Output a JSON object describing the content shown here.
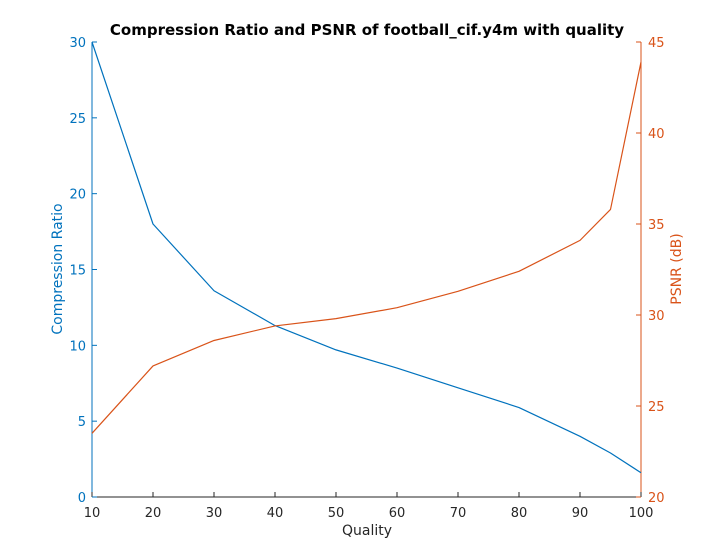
{
  "chart_data": {
    "type": "line",
    "title": "Compression Ratio and PSNR of football_cif.y4m with quality",
    "xlabel": "Quality",
    "x": [
      10,
      20,
      30,
      40,
      50,
      60,
      70,
      80,
      90,
      95,
      100
    ],
    "xlim": [
      10,
      100
    ],
    "xticks": [
      10,
      20,
      30,
      40,
      50,
      60,
      70,
      80,
      90,
      100
    ],
    "grid": false,
    "series": [
      {
        "name": "Compression Ratio",
        "axis": "left",
        "color": "#0072bd",
        "values": [
          30.0,
          18.0,
          13.6,
          11.3,
          9.7,
          8.5,
          7.2,
          5.9,
          4.0,
          2.9,
          1.6
        ]
      },
      {
        "name": "PSNR",
        "axis": "right",
        "color": "#d95319",
        "values": [
          23.5,
          27.2,
          28.6,
          29.4,
          29.8,
          30.4,
          31.3,
          32.4,
          34.1,
          35.8,
          43.9
        ]
      }
    ],
    "left_axis": {
      "label": "Compression Ratio",
      "ylim": [
        0,
        30
      ],
      "ticks": [
        0,
        5,
        10,
        15,
        20,
        25,
        30
      ],
      "color": "#0072bd"
    },
    "right_axis": {
      "label": "PSNR (dB)",
      "ylim": [
        20,
        45
      ],
      "ticks": [
        20,
        25,
        30,
        35,
        40,
        45
      ],
      "color": "#d95319"
    }
  }
}
